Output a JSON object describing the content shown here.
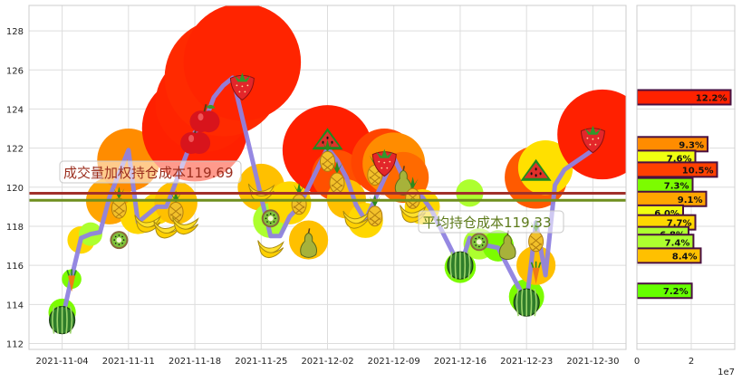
{
  "chart_data": [
    {
      "type": "line",
      "x_ticks": [
        "2021-11-04",
        "2021-11-11",
        "2021-11-18",
        "2021-11-25",
        "2021-12-02",
        "2021-12-09",
        "2021-12-16",
        "2021-12-23",
        "2021-12-30"
      ],
      "x_tick_day_index": [
        0,
        7,
        14,
        21,
        28,
        35,
        42,
        49,
        56
      ],
      "y_ticks": [
        112,
        114,
        116,
        118,
        120,
        122,
        124,
        126,
        128
      ],
      "ylim": [
        111.7,
        129.3
      ],
      "xlim": [
        -3.5,
        59.5
      ],
      "grid": true,
      "series": [
        {
          "day_index": [
            0,
            1,
            2,
            3,
            4,
            5,
            7,
            8,
            9,
            10,
            11,
            14,
            15,
            16,
            17,
            18,
            21,
            22,
            23,
            24,
            25,
            28,
            29,
            30,
            31,
            32,
            35,
            36,
            37,
            38,
            39,
            42,
            43,
            44,
            45,
            46,
            49,
            50,
            51,
            52,
            53,
            56
          ],
          "values": [
            113.2,
            115.4,
            117.4,
            117.6,
            117.7,
            119.5,
            121.9,
            118.2,
            118.6,
            119.0,
            119.0,
            122.8,
            123.3,
            124.6,
            125.2,
            125.6,
            119.5,
            117.5,
            117.5,
            118.5,
            119.0,
            122.0,
            121.4,
            120.5,
            119.1,
            118.3,
            121.5,
            120.5,
            119.6,
            119.5,
            118.8,
            115.9,
            117.4,
            117.1,
            117.0,
            116.9,
            114.1,
            118.2,
            115.5,
            120.1,
            120.9,
            121.9
          ]
        }
      ],
      "markers": [
        {
          "day_index": 0,
          "value": 113.2,
          "icon": "watermelon-icon"
        },
        {
          "day_index": 1,
          "value": 115.2,
          "icon": "carrot-icon"
        },
        {
          "day_index": 6,
          "value": 119.2,
          "icon": "pineapple-icon"
        },
        {
          "day_index": 6,
          "value": 117.3,
          "icon": "kiwi-icon"
        },
        {
          "day_index": 9,
          "value": 118.3,
          "icon": "banana-icon"
        },
        {
          "day_index": 11,
          "value": 118.0,
          "icon": "banana-icon"
        },
        {
          "day_index": 12,
          "value": 119.0,
          "icon": "pineapple-icon"
        },
        {
          "day_index": 13,
          "value": 118.2,
          "icon": "banana-icon"
        },
        {
          "day_index": 14,
          "value": 122.4,
          "icon": "apple-icon"
        },
        {
          "day_index": 15,
          "value": 123.5,
          "icon": "apple-icon"
        },
        {
          "day_index": 19,
          "value": 125.3,
          "icon": "strawberry-icon"
        },
        {
          "day_index": 21,
          "value": 119.9,
          "icon": "banana-icon"
        },
        {
          "day_index": 22,
          "value": 118.4,
          "icon": "kiwi-icon"
        },
        {
          "day_index": 22,
          "value": 117.0,
          "icon": "banana-icon"
        },
        {
          "day_index": 25,
          "value": 119.4,
          "icon": "pineapple-icon"
        },
        {
          "day_index": 26,
          "value": 117.1,
          "icon": "pear-icon"
        },
        {
          "day_index": 28,
          "value": 122.2,
          "icon": "watermelon-slice-icon"
        },
        {
          "day_index": 28,
          "value": 121.6,
          "icon": "pineapple-icon"
        },
        {
          "day_index": 29,
          "value": 120.5,
          "icon": "pineapple-icon"
        },
        {
          "day_index": 31,
          "value": 118.5,
          "icon": "banana-icon"
        },
        {
          "day_index": 33,
          "value": 118.8,
          "icon": "pineapple-icon"
        },
        {
          "day_index": 33,
          "value": 120.9,
          "icon": "pineapple-icon"
        },
        {
          "day_index": 34,
          "value": 121.4,
          "icon": "strawberry-icon"
        },
        {
          "day_index": 36,
          "value": 120.3,
          "icon": "pear-icon"
        },
        {
          "day_index": 37,
          "value": 119.7,
          "icon": "pineapple-icon"
        },
        {
          "day_index": 37,
          "value": 118.8,
          "icon": "banana-icon"
        },
        {
          "day_index": 42,
          "value": 116.0,
          "icon": "watermelon-icon"
        },
        {
          "day_index": 44,
          "value": 117.2,
          "icon": "kiwi-icon"
        },
        {
          "day_index": 47,
          "value": 117.0,
          "icon": "pear-icon"
        },
        {
          "day_index": 49,
          "value": 114.1,
          "icon": "watermelon-icon"
        },
        {
          "day_index": 50,
          "value": 117.5,
          "icon": "pineapple-icon"
        },
        {
          "day_index": 50,
          "value": 115.6,
          "icon": "carrot-icon"
        },
        {
          "day_index": 50,
          "value": 120.6,
          "icon": "watermelon-slice-icon"
        },
        {
          "day_index": 56,
          "value": 122.6,
          "icon": "strawberry-icon"
        }
      ],
      "bubbles": [
        {
          "day_index": 0,
          "value": 113.6,
          "r": 0.7,
          "color": "#7cfc00"
        },
        {
          "day_index": 1,
          "value": 115.3,
          "r": 0.5,
          "color": "#7cfc00"
        },
        {
          "day_index": 2,
          "value": 117.3,
          "r": 0.7,
          "color": "#ffd700"
        },
        {
          "day_index": 3,
          "value": 117.6,
          "r": 0.6,
          "color": "#adff2f"
        },
        {
          "day_index": 5,
          "value": 119.3,
          "r": 1.2,
          "color": "#ffa500"
        },
        {
          "day_index": 7,
          "value": 121.4,
          "r": 1.6,
          "color": "#ff8c00"
        },
        {
          "day_index": 8,
          "value": 118.5,
          "r": 0.9,
          "color": "#ffd700"
        },
        {
          "day_index": 10,
          "value": 118.9,
          "r": 0.8,
          "color": "#ffd700"
        },
        {
          "day_index": 12,
          "value": 119.2,
          "r": 1.1,
          "color": "#ffc000"
        },
        {
          "day_index": 14,
          "value": 123.0,
          "r": 2.7,
          "color": "#ff2000"
        },
        {
          "day_index": 15,
          "value": 124.3,
          "r": 2.5,
          "color": "#ff2400"
        },
        {
          "day_index": 17,
          "value": 125.6,
          "r": 3.0,
          "color": "#ff2a00"
        },
        {
          "day_index": 19,
          "value": 126.4,
          "r": 3.0,
          "color": "#ff2400"
        },
        {
          "day_index": 21,
          "value": 120.0,
          "r": 1.2,
          "color": "#ffc000"
        },
        {
          "day_index": 22,
          "value": 118.3,
          "r": 0.9,
          "color": "#adff2f"
        },
        {
          "day_index": 24,
          "value": 119.2,
          "r": 1.1,
          "color": "#ffd700"
        },
        {
          "day_index": 26,
          "value": 117.3,
          "r": 1.0,
          "color": "#ffc000"
        },
        {
          "day_index": 28,
          "value": 121.9,
          "r": 2.3,
          "color": "#ff2000"
        },
        {
          "day_index": 29,
          "value": 120.6,
          "r": 1.3,
          "color": "#ff5000"
        },
        {
          "day_index": 30,
          "value": 119.4,
          "r": 1.0,
          "color": "#ffc000"
        },
        {
          "day_index": 32,
          "value": 118.3,
          "r": 0.9,
          "color": "#ffd700"
        },
        {
          "day_index": 34,
          "value": 121.3,
          "r": 1.7,
          "color": "#ff4500"
        },
        {
          "day_index": 35,
          "value": 121.2,
          "r": 1.6,
          "color": "#ff8c00"
        },
        {
          "day_index": 36,
          "value": 120.5,
          "r": 1.3,
          "color": "#ff6a00"
        },
        {
          "day_index": 38,
          "value": 119.0,
          "r": 0.9,
          "color": "#ffd700"
        },
        {
          "day_index": 42,
          "value": 115.9,
          "r": 0.8,
          "color": "#7cfc00"
        },
        {
          "day_index": 43,
          "value": 119.7,
          "r": 0.7,
          "color": "#adff2f"
        },
        {
          "day_index": 44,
          "value": 117.1,
          "r": 0.8,
          "color": "#adff2f"
        },
        {
          "day_index": 46,
          "value": 117.0,
          "r": 0.8,
          "color": "#7cfc00"
        },
        {
          "day_index": 49,
          "value": 114.4,
          "r": 0.9,
          "color": "#7cfc00"
        },
        {
          "day_index": 50,
          "value": 116.0,
          "r": 1.0,
          "color": "#ffc000"
        },
        {
          "day_index": 50,
          "value": 120.5,
          "r": 1.6,
          "color": "#ff5a00"
        },
        {
          "day_index": 51,
          "value": 121.0,
          "r": 1.4,
          "color": "#ffe000"
        },
        {
          "day_index": 57,
          "value": 122.7,
          "r": 2.3,
          "color": "#ff2000"
        }
      ],
      "hlines": [
        {
          "value": 119.69,
          "label": "成交量加权持仓成本119.69",
          "color": "#a0302a",
          "text_color": "#9b2e1e"
        },
        {
          "value": 119.33,
          "label": "平均持仓成本119.33",
          "color": "#6f8f1e",
          "text_color": "#5c7a1a"
        }
      ]
    },
    {
      "type": "bar",
      "orientation": "horizontal",
      "x_ticks": [
        0,
        2
      ],
      "x_offset_label": "1e7",
      "xlim": [
        0,
        3.6
      ],
      "ylim": [
        111.7,
        129.3
      ],
      "bars": [
        {
          "price": 124.6,
          "value": 3.45,
          "label": "12.2%",
          "color": "#ff2200"
        },
        {
          "price": 122.2,
          "value": 2.6,
          "label": "9.3%",
          "color": "#ff8c00"
        },
        {
          "price": 121.5,
          "value": 2.15,
          "label": "7.6%",
          "color": "#f0ff10"
        },
        {
          "price": 120.9,
          "value": 2.95,
          "label": "10.5%",
          "color": "#ff4000"
        },
        {
          "price": 120.1,
          "value": 2.05,
          "label": "7.3%",
          "color": "#7cfc00"
        },
        {
          "price": 119.4,
          "value": 2.55,
          "label": "9.1%",
          "color": "#ffa500"
        },
        {
          "price": 118.7,
          "value": 1.7,
          "label": "6.0%",
          "color": "#f0ff10"
        },
        {
          "price": 118.2,
          "value": 2.15,
          "label": "7.7%",
          "color": "#ffd700"
        },
        {
          "price": 117.6,
          "value": 1.9,
          "label": "6.8%",
          "color": "#adff2f"
        },
        {
          "price": 117.2,
          "value": 2.08,
          "label": "7.4%",
          "color": "#adff2f"
        },
        {
          "price": 116.5,
          "value": 2.35,
          "label": "8.4%",
          "color": "#ffc000"
        },
        {
          "price": 114.7,
          "value": 2.02,
          "label": "7.2%",
          "color": "#66ff00"
        }
      ]
    }
  ]
}
